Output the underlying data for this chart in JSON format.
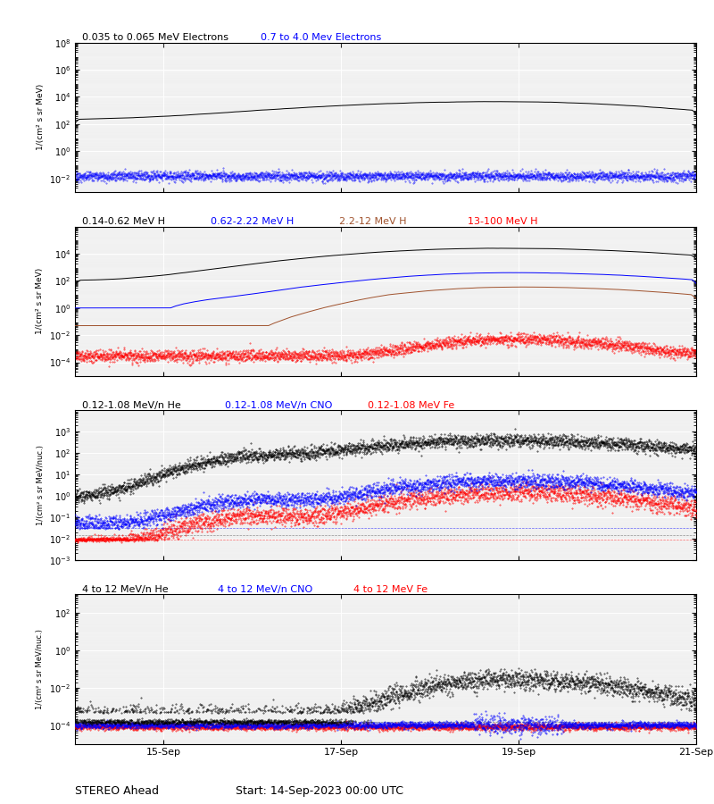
{
  "title_top": "STEREO Ahead",
  "title_bottom": "Start: 14-Sep-2023 00:00 UTC",
  "x_tick_positions": [
    1,
    3,
    5,
    7
  ],
  "x_tick_labels": [
    "15-Sep",
    "17-Sep",
    "19-Sep",
    "21-Sep"
  ],
  "total_days": 7,
  "panel1": {
    "legend": [
      "0.035 to 0.065 MeV Electrons",
      "0.7 to 4.0 Mev Electrons"
    ],
    "legend_colors": [
      "black",
      "blue"
    ],
    "ylim": [
      0.001,
      100000000.0
    ],
    "ylabel": "1/(cm² s sr MeV)"
  },
  "panel2": {
    "legend": [
      "0.14-0.62 MeV H",
      "0.62-2.22 MeV H",
      "2.2-12 MeV H",
      "13-100 MeV H"
    ],
    "legend_colors": [
      "black",
      "blue",
      "#a0522d",
      "red"
    ],
    "ylim": [
      1e-05,
      1000000.0
    ],
    "ylabel": "1/(cm² s sr MeV)"
  },
  "panel3": {
    "legend": [
      "0.12-1.08 MeV/n He",
      "0.12-1.08 MeV/n CNO",
      "0.12-1.08 MeV Fe"
    ],
    "legend_colors": [
      "black",
      "blue",
      "red"
    ],
    "ylim": [
      0.001,
      10000.0
    ],
    "ylabel": "1/(cm² s sr MeV/nuc.)"
  },
  "panel4": {
    "legend": [
      "4 to 12 MeV/n He",
      "4 to 12 MeV/n CNO",
      "4 to 12 MeV Fe"
    ],
    "legend_colors": [
      "black",
      "blue",
      "red"
    ],
    "ylim": [
      1e-05,
      1000.0
    ],
    "ylabel": "1/(cm² s sr MeV/nuc.)"
  },
  "plot_bg": "#ffffff"
}
